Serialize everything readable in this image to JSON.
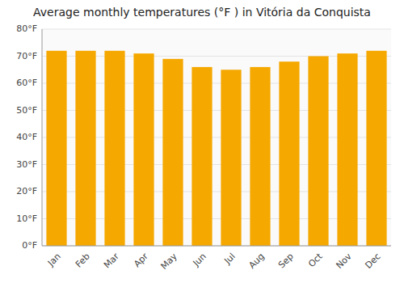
{
  "chart_data": {
    "type": "bar",
    "title": "Average monthly temperatures (°F ) in Vitória da Conquista",
    "categories": [
      "Jan",
      "Feb",
      "Mar",
      "Apr",
      "May",
      "Jun",
      "Jul",
      "Aug",
      "Sep",
      "Oct",
      "Nov",
      "Dec"
    ],
    "values": [
      72,
      72,
      72,
      71,
      69,
      66,
      65,
      66,
      68,
      70,
      71,
      72
    ],
    "color": "#F5A800",
    "ylim": [
      0,
      80
    ],
    "yticks": [
      {
        "value": 0,
        "label": "0°F"
      },
      {
        "value": 10,
        "label": "10°F"
      },
      {
        "value": 20,
        "label": "20°F"
      },
      {
        "value": 30,
        "label": "30°F"
      },
      {
        "value": 40,
        "label": "40°F"
      },
      {
        "value": 50,
        "label": "50°F"
      },
      {
        "value": 60,
        "label": "60°F"
      },
      {
        "value": 70,
        "label": "70°F"
      },
      {
        "value": 80,
        "label": "80°F"
      }
    ],
    "grid": true
  }
}
